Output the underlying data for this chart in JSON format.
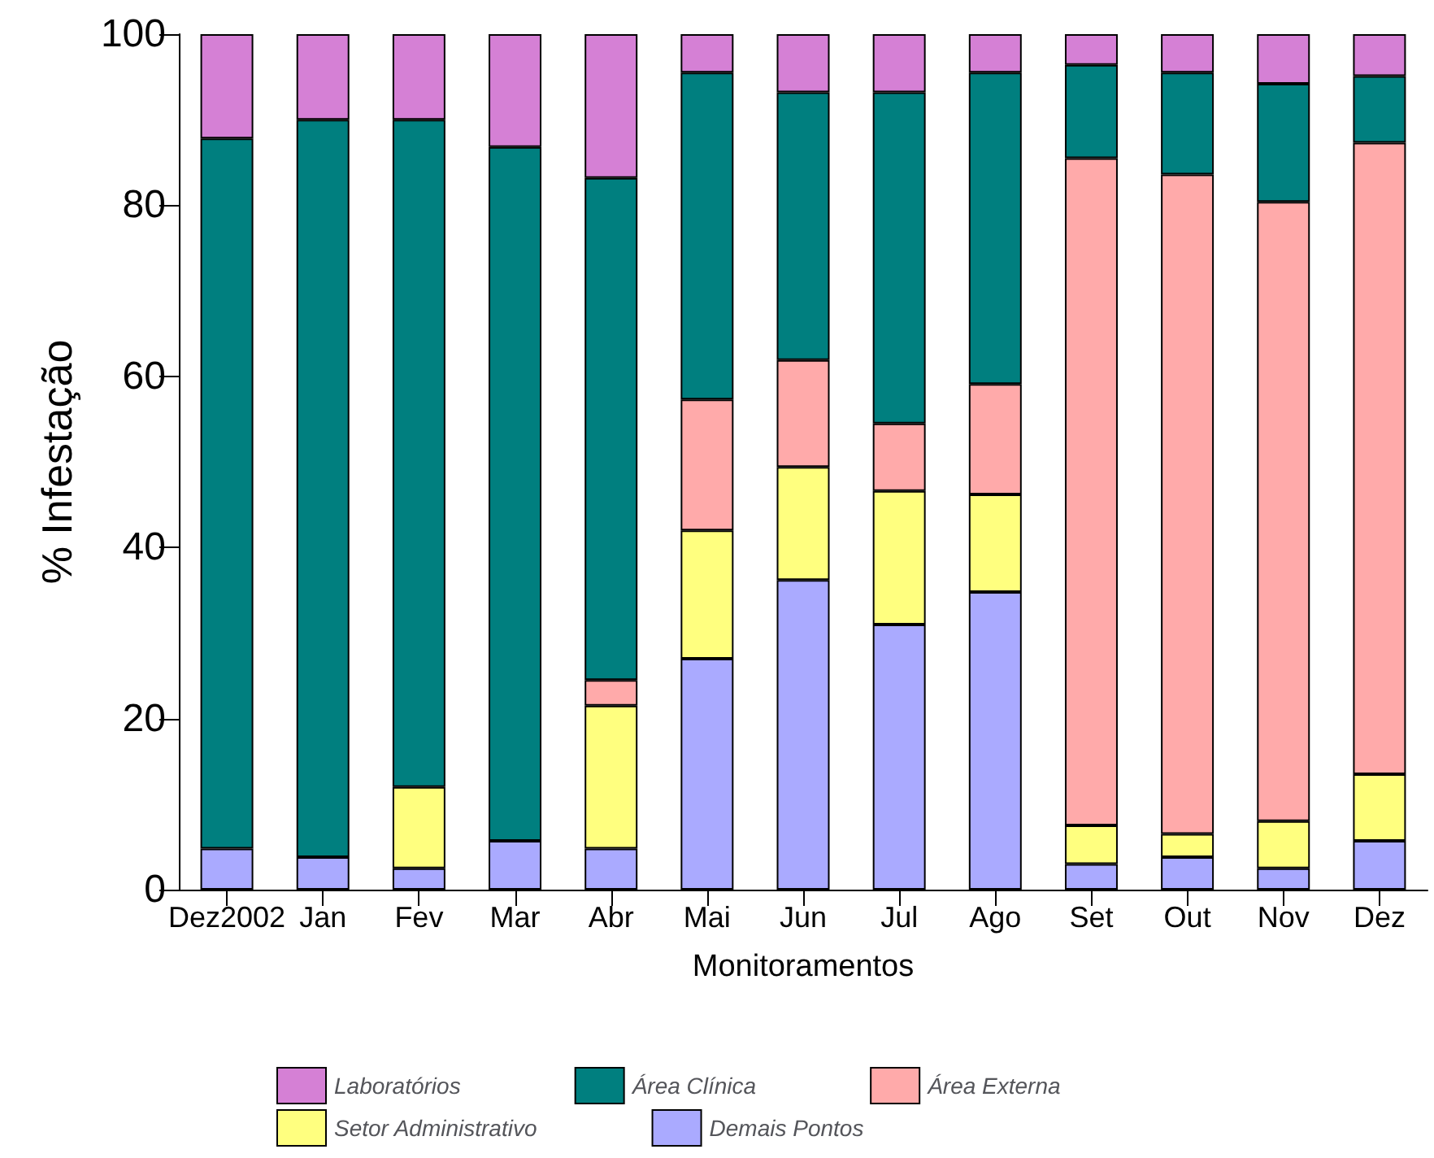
{
  "chart_data": {
    "type": "bar",
    "stacked": true,
    "xlabel": "Monitoramentos",
    "ylabel": "% Infestação",
    "categories": [
      "Dez2002",
      "Jan",
      "Fev",
      "Mar",
      "Abr",
      "Mai",
      "Jun",
      "Jul",
      "Ago",
      "Set",
      "Out",
      "Nov",
      "Dez"
    ],
    "series": [
      {
        "name": "Demais Pontos",
        "color": "#aaaaff",
        "values": [
          4.8,
          3.8,
          2.5,
          5.7,
          4.8,
          27,
          36.2,
          31,
          34.8,
          3,
          3.8,
          2.5,
          5.7
        ]
      },
      {
        "name": "Setor Administrativo",
        "color": "#ffff7f",
        "values": [
          null,
          null,
          9.5,
          null,
          16.7,
          15,
          13.2,
          15.6,
          11.4,
          4.5,
          2.7,
          5.5,
          7.8
        ]
      },
      {
        "name": "Área Externa",
        "color": "#ffaaaa",
        "values": [
          null,
          null,
          null,
          null,
          3,
          15.3,
          12.5,
          7.9,
          12.9,
          78,
          77.1,
          72.4,
          73.8
        ]
      },
      {
        "name": "Área Clínica",
        "color": "#007f7f",
        "values": [
          83,
          86.2,
          78,
          81.1,
          58.7,
          38.2,
          31.3,
          38.7,
          36.4,
          10.9,
          11.9,
          13.8,
          7.8
        ]
      },
      {
        "name": "Laboratórios",
        "color": "#d580d5",
        "values": [
          12.2,
          10,
          10,
          13.2,
          16.8,
          4.5,
          6.8,
          6.8,
          4.5,
          3.6,
          4.5,
          5.8,
          4.9
        ]
      }
    ],
    "ylim": [
      0,
      100
    ],
    "yticks": [
      0,
      20,
      40,
      60,
      80,
      100
    ],
    "grid": false,
    "legend": "bottom"
  }
}
